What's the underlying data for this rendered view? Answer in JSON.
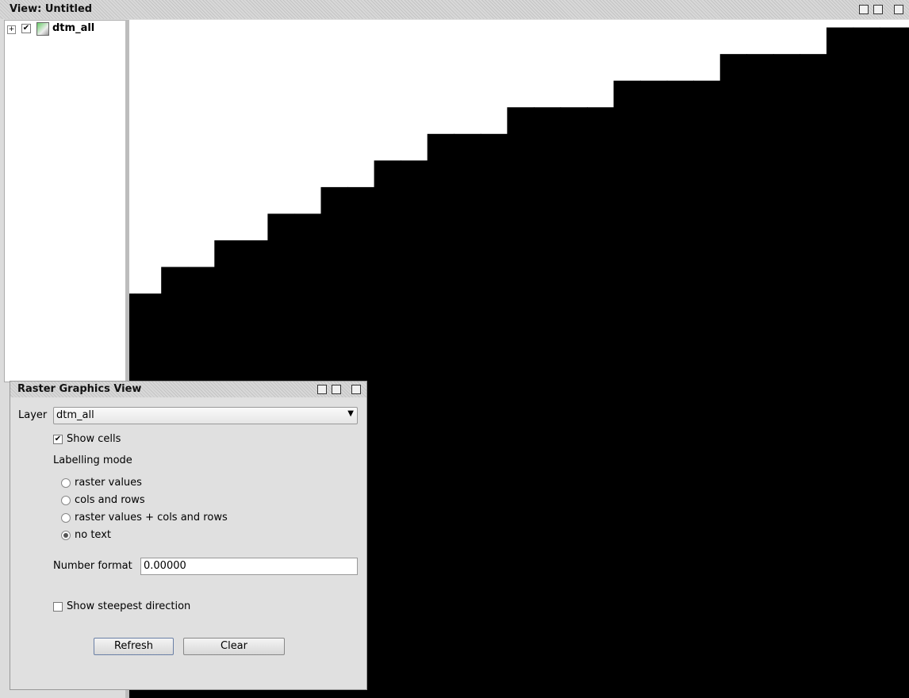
{
  "view": {
    "title": "View: Untitled"
  },
  "tree": {
    "layer": "dtm_all",
    "checked": true
  },
  "dialog": {
    "title": "Raster Graphics View",
    "layer_label": "Layer",
    "layer_value": "dtm_all",
    "show_cells": {
      "label": "Show cells",
      "checked": true
    },
    "labelling_mode": "Labelling mode",
    "options": [
      "raster values",
      "cols and rows",
      "raster values + cols and rows",
      "no text"
    ],
    "selected_option": 3,
    "number_format_label": "Number format",
    "number_format_value": "0.00000",
    "show_steepest": {
      "label": "Show steepest direction",
      "checked": false
    },
    "buttons": [
      "Refresh",
      "Clear"
    ]
  }
}
